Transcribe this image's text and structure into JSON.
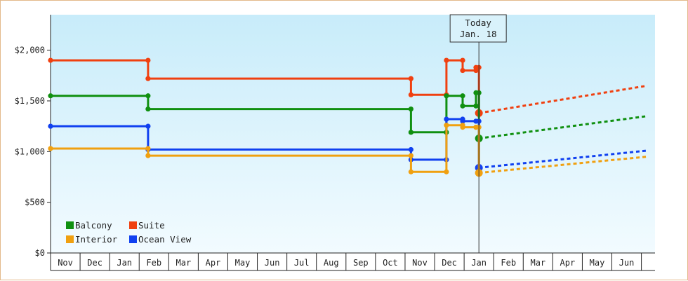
{
  "chart_data": {
    "type": "line",
    "title": "",
    "xlabel": "",
    "ylabel": "",
    "ylim": [
      0,
      2350
    ],
    "x_months": [
      "Nov",
      "Dec",
      "Jan",
      "Feb",
      "Mar",
      "Apr",
      "May",
      "Jun",
      "Jul",
      "Aug",
      "Sep",
      "Oct",
      "Nov",
      "Dec",
      "Jan",
      "Feb",
      "Mar",
      "Apr",
      "May",
      "Jun"
    ],
    "y_ticks": [
      {
        "value": 0,
        "label": "$0"
      },
      {
        "value": 500,
        "label": "$500"
      },
      {
        "value": 1000,
        "label": "$1,000"
      },
      {
        "value": 1500,
        "label": "$1,500"
      },
      {
        "value": 2000,
        "label": "$2,000"
      }
    ],
    "annotation": {
      "line1": "Today",
      "line2": "Jan. 18",
      "x": 14.5
    },
    "series": [
      {
        "name": "Suite",
        "color": "#f04010",
        "points": [
          [
            0,
            1900
          ],
          [
            3.3,
            1900
          ],
          [
            3.3,
            1720
          ],
          [
            12.2,
            1720
          ],
          [
            12.2,
            1560
          ],
          [
            13.4,
            1560
          ],
          [
            13.4,
            1900
          ],
          [
            13.95,
            1900
          ],
          [
            13.95,
            1800
          ],
          [
            14.4,
            1800
          ],
          [
            14.4,
            1830
          ],
          [
            14.5,
            1830
          ],
          [
            14.5,
            1380
          ]
        ],
        "forecast": [
          [
            14.5,
            1380
          ],
          [
            20.2,
            1650
          ]
        ]
      },
      {
        "name": "Balcony",
        "color": "#109010",
        "points": [
          [
            0,
            1550
          ],
          [
            3.3,
            1550
          ],
          [
            3.3,
            1420
          ],
          [
            12.2,
            1420
          ],
          [
            12.2,
            1190
          ],
          [
            13.4,
            1190
          ],
          [
            13.4,
            1550
          ],
          [
            13.95,
            1550
          ],
          [
            13.95,
            1450
          ],
          [
            14.4,
            1450
          ],
          [
            14.4,
            1580
          ],
          [
            14.5,
            1580
          ],
          [
            14.5,
            1130
          ]
        ],
        "forecast": [
          [
            14.5,
            1130
          ],
          [
            20.2,
            1350
          ]
        ]
      },
      {
        "name": "Ocean View",
        "color": "#1040f0",
        "points": [
          [
            0,
            1250
          ],
          [
            3.3,
            1250
          ],
          [
            3.3,
            1020
          ],
          [
            12.2,
            1020
          ],
          [
            12.2,
            920
          ],
          [
            13.4,
            920
          ],
          [
            13.4,
            1320
          ],
          [
            13.95,
            1320
          ],
          [
            13.95,
            1300
          ],
          [
            14.4,
            1300
          ],
          [
            14.4,
            1300
          ],
          [
            14.5,
            1300
          ],
          [
            14.5,
            840
          ]
        ],
        "forecast": [
          [
            14.5,
            840
          ],
          [
            20.2,
            1010
          ]
        ]
      },
      {
        "name": "Interior",
        "color": "#f0a010",
        "points": [
          [
            0,
            1030
          ],
          [
            3.3,
            1030
          ],
          [
            3.3,
            960
          ],
          [
            12.2,
            960
          ],
          [
            12.2,
            800
          ],
          [
            13.4,
            800
          ],
          [
            13.4,
            1260
          ],
          [
            13.95,
            1260
          ],
          [
            13.95,
            1240
          ],
          [
            14.4,
            1240
          ],
          [
            14.4,
            1240
          ],
          [
            14.5,
            1240
          ],
          [
            14.5,
            790
          ]
        ],
        "forecast": [
          [
            14.5,
            790
          ],
          [
            20.2,
            950
          ]
        ]
      }
    ],
    "legend": [
      {
        "name": "Balcony",
        "color": "#109010"
      },
      {
        "name": "Suite",
        "color": "#f04010"
      },
      {
        "name": "Interior",
        "color": "#f0a010"
      },
      {
        "name": "Ocean View",
        "color": "#1040f0"
      }
    ],
    "grid": false,
    "legend_position": "bottom-left"
  }
}
